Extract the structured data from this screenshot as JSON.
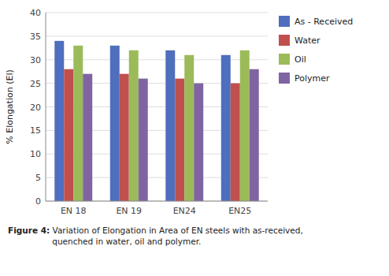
{
  "chart_data": {
    "type": "bar",
    "categories": [
      "EN 18",
      "EN 19",
      "EN24",
      "EN25"
    ],
    "series": [
      {
        "name": "As - Received",
        "color": "#4F6EBD",
        "values": [
          34,
          33,
          32,
          31
        ]
      },
      {
        "name": "Water",
        "color": "#C0504D",
        "values": [
          28,
          27,
          26,
          25
        ]
      },
      {
        "name": "Oil",
        "color": "#9BBB59",
        "values": [
          33,
          32,
          31,
          32
        ]
      },
      {
        "name": "Polymer",
        "color": "#8064A2",
        "values": [
          27,
          26,
          25,
          28
        ]
      }
    ],
    "y_label": "% Elongation (El)",
    "ylim": [
      0,
      40
    ],
    "yticks": [
      0,
      5,
      10,
      15,
      20,
      25,
      30,
      35,
      40
    ],
    "grid": true,
    "legend": "right",
    "annotations": [
      "Figure 4:",
      " Variation of Elongation in Area of EN steels with as-received,\nquenched in water, oil and polymer."
    ]
  }
}
